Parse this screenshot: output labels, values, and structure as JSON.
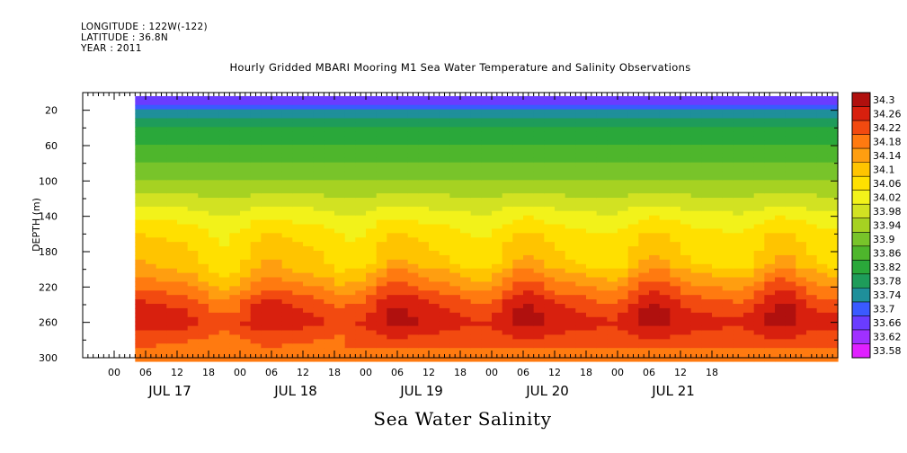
{
  "header": {
    "longitude": "LONGITUDE : 122W(-122)",
    "latitude": "LATITUDE : 36.8N",
    "year": "YEAR : 2011"
  },
  "title": "Hourly Gridded MBARI Mooring M1 Sea Water Temperature and Salinity Observations",
  "bottom_title": "Sea Water Salinity",
  "chart_data": {
    "type": "heatmap",
    "variable": "Sea Water Salinity",
    "ylabel": "DEPTH (m)",
    "y_reversed": true,
    "ylim": [
      0,
      300
    ],
    "y_ticks": [
      20,
      60,
      100,
      140,
      180,
      220,
      260,
      300
    ],
    "x_range_hours": [
      -6,
      138
    ],
    "data_start_hour": 4,
    "x_hour_ticks": [
      "00",
      "06",
      "12",
      "18",
      "00",
      "06",
      "12",
      "18",
      "00",
      "06",
      "12",
      "18",
      "00",
      "06",
      "12",
      "18",
      "00",
      "06",
      "12",
      "18"
    ],
    "x_date_labels": [
      "JUL 17",
      "JUL 18",
      "JUL 19",
      "JUL 20",
      "JUL 21"
    ],
    "colorbar_levels": [
      33.58,
      33.62,
      33.66,
      33.7,
      33.74,
      33.78,
      33.82,
      33.86,
      33.9,
      33.94,
      33.98,
      34.02,
      34.06,
      34.1,
      34.14,
      34.18,
      34.22,
      34.26,
      34.3
    ],
    "colorbar_colors": [
      "#e020ff",
      "#a030ff",
      "#6a3cff",
      "#3a5aff",
      "#1f8f9a",
      "#1e9c5a",
      "#2aa83a",
      "#4eb62c",
      "#78c42a",
      "#a6d222",
      "#d2e222",
      "#f2f21a",
      "#ffe000",
      "#ffc400",
      "#ff9e10",
      "#ff7a10",
      "#f24a10",
      "#d8200e",
      "#b0100e"
    ],
    "depth_profile": [
      {
        "depth": 10,
        "value": 33.68
      },
      {
        "depth": 20,
        "value": 33.75
      },
      {
        "depth": 40,
        "value": 33.82
      },
      {
        "depth": 60,
        "value": 33.86
      },
      {
        "depth": 80,
        "value": 33.9
      },
      {
        "depth": 100,
        "value": 33.94
      },
      {
        "depth": 120,
        "value": 33.99
      },
      {
        "depth": 140,
        "value": 34.04
      },
      {
        "depth": 160,
        "value": 34.08
      },
      {
        "depth": 180,
        "value": 34.1
      },
      {
        "depth": 200,
        "value": 34.12
      },
      {
        "depth": 220,
        "value": 34.18
      },
      {
        "depth": 240,
        "value": 34.24
      },
      {
        "depth": 260,
        "value": 34.27
      },
      {
        "depth": 280,
        "value": 34.22
      },
      {
        "depth": 300,
        "value": 34.2
      }
    ]
  }
}
